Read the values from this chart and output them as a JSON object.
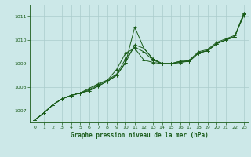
{
  "title": "Graphe pression niveau de la mer (hPa)",
  "bg_color": "#cce8e8",
  "grid_color": "#aacccc",
  "line_color": "#1a5c1a",
  "marker_color": "#1a5c1a",
  "xlim": [
    -0.5,
    23.5
  ],
  "ylim": [
    1006.5,
    1011.5
  ],
  "yticks": [
    1007,
    1008,
    1009,
    1010,
    1011
  ],
  "xticks": [
    0,
    1,
    2,
    3,
    4,
    5,
    6,
    7,
    8,
    9,
    10,
    11,
    12,
    13,
    14,
    15,
    16,
    17,
    18,
    19,
    20,
    21,
    22,
    23
  ],
  "series": [
    [
      1006.6,
      1006.9,
      1007.25,
      1007.5,
      1007.65,
      1007.75,
      1007.85,
      1008.05,
      1008.25,
      1008.5,
      1009.05,
      1009.8,
      1009.65,
      1009.2,
      1009.0,
      1009.0,
      1009.1,
      1009.1,
      1009.45,
      1009.55,
      1009.85,
      1010.0,
      1010.15,
      1011.15
    ],
    [
      1006.6,
      1006.9,
      1007.25,
      1007.5,
      1007.65,
      1007.75,
      1007.95,
      1008.15,
      1008.3,
      1008.75,
      1009.45,
      1009.65,
      1009.15,
      1009.05,
      1009.0,
      1009.0,
      1009.05,
      1009.15,
      1009.5,
      1009.6,
      1009.9,
      1010.05,
      1010.2,
      1011.05
    ],
    [
      1006.6,
      1006.9,
      1007.25,
      1007.5,
      1007.65,
      1007.75,
      1007.9,
      1008.1,
      1008.3,
      1008.55,
      1009.2,
      1009.7,
      1009.5,
      1009.15,
      1009.0,
      1009.0,
      1009.05,
      1009.1,
      1009.45,
      1009.55,
      1009.85,
      1010.0,
      1010.15,
      1011.1
    ],
    [
      1006.6,
      1006.9,
      1007.25,
      1007.5,
      1007.65,
      1007.75,
      1007.85,
      1008.05,
      1008.25,
      1008.5,
      1009.05,
      1010.55,
      1009.65,
      1009.2,
      1009.0,
      1009.0,
      1009.1,
      1009.1,
      1009.45,
      1009.55,
      1009.85,
      1010.0,
      1010.15,
      1011.15
    ]
  ]
}
